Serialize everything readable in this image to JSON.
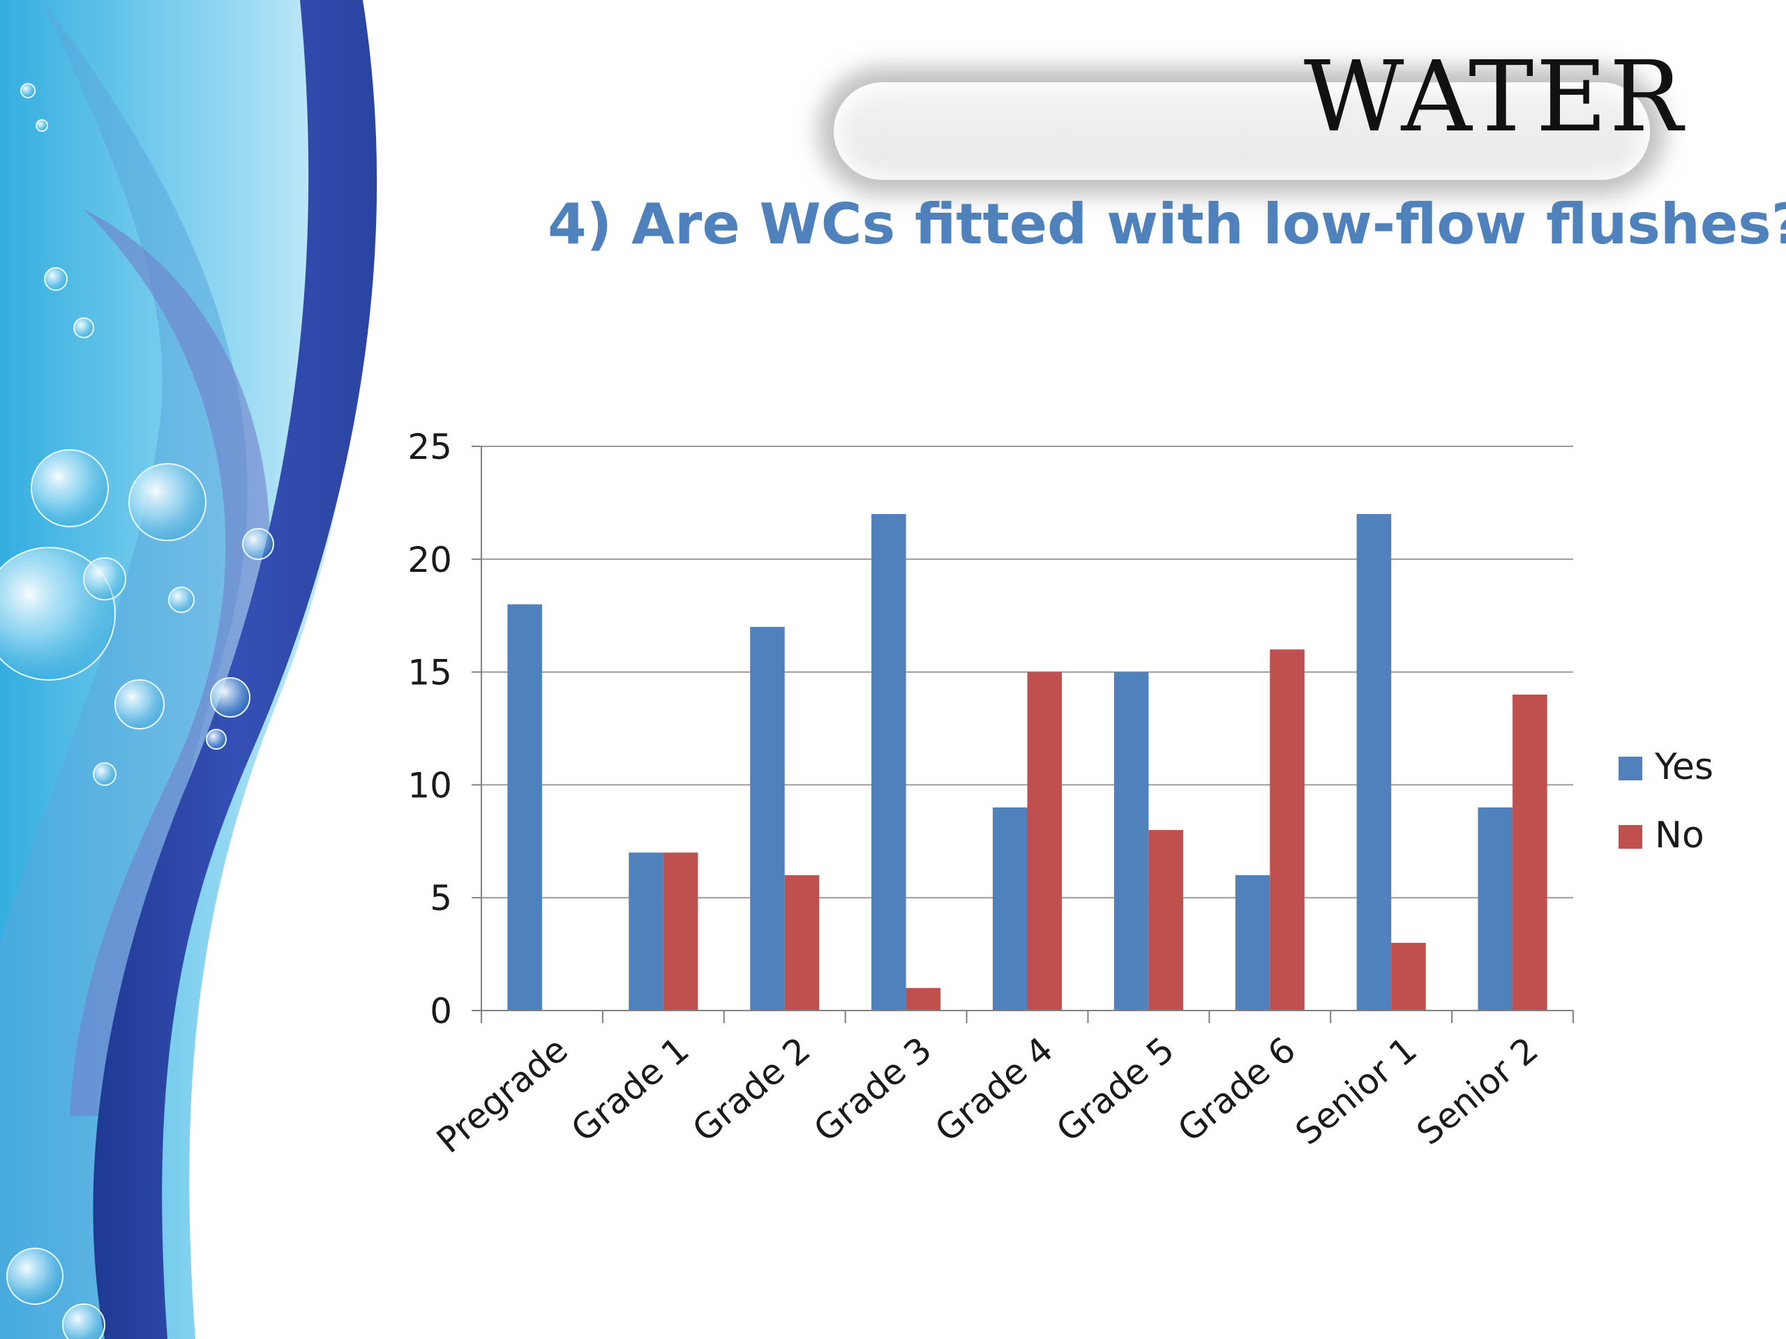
{
  "slide": {
    "banner_title": "WATER",
    "question": "4) Are WCs fitted with low-flow flushes?"
  },
  "colors": {
    "yes": "#4f81bd",
    "no": "#c0504d",
    "accent_text": "#4f81bd"
  },
  "chart_data": {
    "type": "bar",
    "categories": [
      "Pregrade",
      "Grade 1",
      "Grade 2",
      "Grade 3",
      "Grade 4",
      "Grade 5",
      "Grade 6",
      "Senior 1",
      "Senior 2"
    ],
    "series": [
      {
        "name": "Yes",
        "values": [
          18,
          7,
          17,
          22,
          9,
          15,
          6,
          22,
          9
        ]
      },
      {
        "name": "No",
        "values": [
          0,
          7,
          6,
          1,
          15,
          8,
          16,
          3,
          14
        ]
      }
    ],
    "yticks": [
      0,
      5,
      10,
      15,
      20,
      25
    ],
    "ylim": [
      0,
      25
    ],
    "grid": true,
    "legend": "right"
  }
}
